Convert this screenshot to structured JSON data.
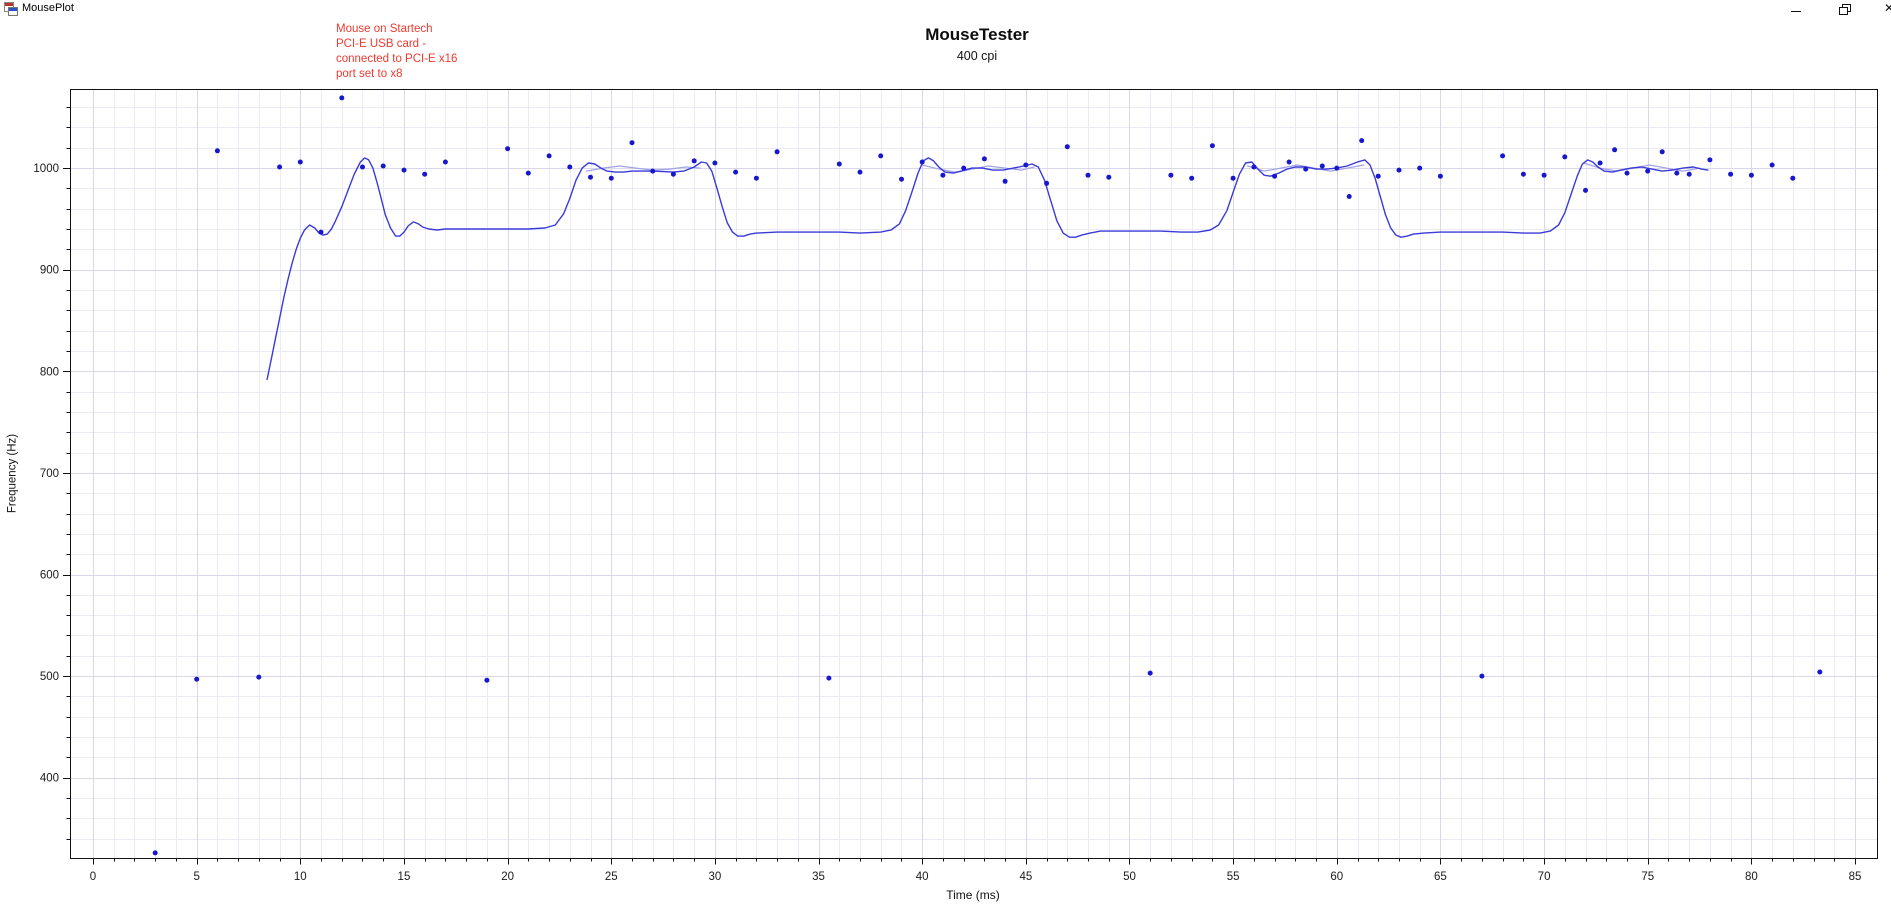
{
  "window": {
    "title": "MousePlot",
    "controls": {
      "minimize_label": "minimize",
      "maximize_label": "restore",
      "close_label": "close",
      "close_glyph": "✕"
    }
  },
  "chart": {
    "annotation": {
      "text": "Mouse on Startech\nPCI-E USB card -\nconnected to PCI-E x16\nport set to x8",
      "color": "#ee3a30"
    }
  },
  "chart_data": {
    "type": "scatter",
    "title": "MouseTester",
    "subtitle": "400 cpi",
    "xlabel": "Time (ms)",
    "ylabel": "Frequency (Hz)",
    "xlim": [
      -1.11,
      86.06
    ],
    "ylim": [
      321,
      1077.8
    ],
    "grid": true,
    "grid_minor_color": "#ebebf5",
    "grid_major_color": "#d8d8ea",
    "axis_color": "#111111",
    "tick_label_color": "#1a1a1a",
    "x_ticks": {
      "min": 0,
      "max": 85,
      "minor_step": 1,
      "major_step": 5
    },
    "y_ticks": {
      "min": 340,
      "max": 1060,
      "minor_step": 20,
      "major_step": 100,
      "label_min": 400
    },
    "series": [
      {
        "name": "secondary-fit",
        "type": "line",
        "color": "#a2a2ea",
        "width": 1.2,
        "segments": [
          [
            [
              23.8,
              997
            ],
            [
              24.6,
              1000
            ],
            [
              25.4,
              1002
            ],
            [
              26.2,
              1000
            ],
            [
              27,
              998
            ],
            [
              27.8,
              999
            ],
            [
              28.6,
              1001
            ],
            [
              29.3,
              1000
            ]
          ],
          [
            [
              40,
              1003
            ],
            [
              40.8,
              999
            ],
            [
              41.6,
              996
            ],
            [
              42.4,
              999
            ],
            [
              43.2,
              1002
            ],
            [
              44,
              1000
            ],
            [
              44.8,
              998
            ],
            [
              45.4,
              1001
            ]
          ],
          [
            [
              55.7,
              1002
            ],
            [
              56.5,
              997
            ],
            [
              57.3,
              1000
            ],
            [
              58.1,
              1003
            ],
            [
              58.9,
              1000
            ],
            [
              59.7,
              997
            ],
            [
              60.5,
              1000
            ],
            [
              61.3,
              1003
            ]
          ],
          [
            [
              71.9,
              1005
            ],
            [
              72.7,
              1000
            ],
            [
              73.5,
              997
            ],
            [
              74.3,
              1000
            ],
            [
              75.1,
              1003
            ],
            [
              75.9,
              1000
            ],
            [
              76.7,
              997
            ],
            [
              77.5,
              1000
            ]
          ]
        ]
      },
      {
        "name": "frequency-fit",
        "type": "line",
        "color": "#3a3ad9",
        "width": 1.4,
        "points": [
          [
            8.4,
            792
          ],
          [
            8.6,
            812
          ],
          [
            8.8,
            832
          ],
          [
            9.0,
            852
          ],
          [
            9.2,
            872
          ],
          [
            9.4,
            890
          ],
          [
            9.6,
            906
          ],
          [
            9.8,
            920
          ],
          [
            10.0,
            931
          ],
          [
            10.2,
            939
          ],
          [
            10.45,
            944
          ],
          [
            10.7,
            941
          ],
          [
            10.9,
            936
          ],
          [
            11.1,
            934
          ],
          [
            11.3,
            935
          ],
          [
            11.5,
            940
          ],
          [
            11.7,
            948
          ],
          [
            12.0,
            962
          ],
          [
            12.3,
            978
          ],
          [
            12.6,
            994
          ],
          [
            12.9,
            1006
          ],
          [
            13.1,
            1010
          ],
          [
            13.3,
            1008
          ],
          [
            13.5,
            1000
          ],
          [
            13.7,
            986
          ],
          [
            13.9,
            970
          ],
          [
            14.1,
            954
          ],
          [
            14.35,
            941
          ],
          [
            14.6,
            933
          ],
          [
            14.8,
            933
          ],
          [
            15.0,
            937
          ],
          [
            15.2,
            943
          ],
          [
            15.45,
            947
          ],
          [
            15.7,
            945
          ],
          [
            15.9,
            942
          ],
          [
            16.2,
            940
          ],
          [
            16.6,
            939
          ],
          [
            17.0,
            940
          ],
          [
            18.0,
            940
          ],
          [
            19.0,
            940
          ],
          [
            20.0,
            940
          ],
          [
            21.0,
            940
          ],
          [
            21.8,
            941
          ],
          [
            22.3,
            944
          ],
          [
            22.7,
            955
          ],
          [
            23.0,
            970
          ],
          [
            23.3,
            988
          ],
          [
            23.6,
            1000
          ],
          [
            23.9,
            1005
          ],
          [
            24.2,
            1004
          ],
          [
            24.5,
            1000
          ],
          [
            24.8,
            997
          ],
          [
            25.2,
            996
          ],
          [
            25.6,
            996
          ],
          [
            26.0,
            997
          ],
          [
            27.0,
            997
          ],
          [
            28.0,
            996
          ],
          [
            28.5,
            997
          ],
          [
            29.0,
            1001
          ],
          [
            29.35,
            1006
          ],
          [
            29.6,
            1005
          ],
          [
            29.85,
            997
          ],
          [
            30.1,
            980
          ],
          [
            30.35,
            962
          ],
          [
            30.6,
            946
          ],
          [
            30.85,
            937
          ],
          [
            31.1,
            933
          ],
          [
            31.4,
            933
          ],
          [
            31.7,
            935
          ],
          [
            32.0,
            936
          ],
          [
            33.0,
            937
          ],
          [
            34.0,
            937
          ],
          [
            35.0,
            937
          ],
          [
            36.0,
            937
          ],
          [
            37.0,
            936
          ],
          [
            38.0,
            937
          ],
          [
            38.5,
            939
          ],
          [
            38.9,
            945
          ],
          [
            39.2,
            958
          ],
          [
            39.5,
            976
          ],
          [
            39.8,
            995
          ],
          [
            40.05,
            1007
          ],
          [
            40.3,
            1010
          ],
          [
            40.55,
            1007
          ],
          [
            40.8,
            1001
          ],
          [
            41.1,
            996
          ],
          [
            41.5,
            995
          ],
          [
            41.9,
            997
          ],
          [
            42.4,
            1000
          ],
          [
            42.9,
            1000
          ],
          [
            43.4,
            998
          ],
          [
            43.9,
            998
          ],
          [
            44.4,
            1000
          ],
          [
            44.9,
            1002
          ],
          [
            45.3,
            1004
          ],
          [
            45.6,
            1001
          ],
          [
            45.9,
            988
          ],
          [
            46.2,
            968
          ],
          [
            46.5,
            948
          ],
          [
            46.8,
            936
          ],
          [
            47.1,
            932
          ],
          [
            47.4,
            932
          ],
          [
            47.7,
            934
          ],
          [
            48.1,
            936
          ],
          [
            48.6,
            938
          ],
          [
            49.5,
            938
          ],
          [
            50.5,
            938
          ],
          [
            51.5,
            938
          ],
          [
            52.5,
            937
          ],
          [
            53.3,
            937
          ],
          [
            53.9,
            939
          ],
          [
            54.3,
            944
          ],
          [
            54.7,
            958
          ],
          [
            55.0,
            976
          ],
          [
            55.3,
            994
          ],
          [
            55.6,
            1005
          ],
          [
            55.9,
            1006
          ],
          [
            56.2,
            999
          ],
          [
            56.5,
            993
          ],
          [
            56.8,
            992
          ],
          [
            57.2,
            995
          ],
          [
            57.6,
            999
          ],
          [
            58.0,
            1001
          ],
          [
            58.5,
            1001
          ],
          [
            59.0,
            999
          ],
          [
            59.5,
            999
          ],
          [
            60.0,
            1000
          ],
          [
            60.5,
            1002
          ],
          [
            61.0,
            1006
          ],
          [
            61.35,
            1008
          ],
          [
            61.6,
            1003
          ],
          [
            61.85,
            990
          ],
          [
            62.1,
            972
          ],
          [
            62.35,
            954
          ],
          [
            62.6,
            941
          ],
          [
            62.85,
            934
          ],
          [
            63.1,
            932
          ],
          [
            63.4,
            933
          ],
          [
            63.7,
            935
          ],
          [
            64.2,
            936
          ],
          [
            65.0,
            937
          ],
          [
            66.0,
            937
          ],
          [
            67.0,
            937
          ],
          [
            68.0,
            937
          ],
          [
            69.0,
            936
          ],
          [
            69.8,
            936
          ],
          [
            70.3,
            938
          ],
          [
            70.7,
            944
          ],
          [
            71.0,
            956
          ],
          [
            71.3,
            974
          ],
          [
            71.6,
            992
          ],
          [
            71.85,
            1004
          ],
          [
            72.1,
            1008
          ],
          [
            72.35,
            1006
          ],
          [
            72.6,
            1001
          ],
          [
            72.9,
            997
          ],
          [
            73.3,
            996
          ],
          [
            73.7,
            998
          ],
          [
            74.2,
            1000
          ],
          [
            74.7,
            1001
          ],
          [
            75.2,
            999
          ],
          [
            75.7,
            997
          ],
          [
            76.2,
            998
          ],
          [
            76.7,
            1000
          ],
          [
            77.2,
            1001
          ],
          [
            77.6,
            999
          ],
          [
            77.9,
            998
          ]
        ]
      },
      {
        "name": "reports",
        "type": "scatter",
        "color": "#1717cf",
        "radius": 2.5,
        "points": [
          [
            3,
            326
          ],
          [
            5,
            497
          ],
          [
            6,
            1017
          ],
          [
            8,
            499
          ],
          [
            9,
            1001
          ],
          [
            10,
            1006
          ],
          [
            11,
            937
          ],
          [
            12,
            1069
          ],
          [
            13,
            1001
          ],
          [
            14,
            1002
          ],
          [
            15,
            998
          ],
          [
            16,
            994
          ],
          [
            17,
            1006
          ],
          [
            19,
            496
          ],
          [
            20,
            1019
          ],
          [
            21,
            995
          ],
          [
            22,
            1012
          ],
          [
            23,
            1001
          ],
          [
            24,
            991
          ],
          [
            25,
            990
          ],
          [
            26,
            1025
          ],
          [
            27,
            997
          ],
          [
            28,
            994
          ],
          [
            29,
            1007
          ],
          [
            30,
            1005
          ],
          [
            31,
            996
          ],
          [
            32,
            990
          ],
          [
            33,
            1016
          ],
          [
            35.5,
            498
          ],
          [
            36,
            1004
          ],
          [
            37,
            996
          ],
          [
            38,
            1012
          ],
          [
            39,
            989
          ],
          [
            40,
            1006
          ],
          [
            41,
            993
          ],
          [
            42,
            1000
          ],
          [
            43,
            1009
          ],
          [
            44,
            987
          ],
          [
            45,
            1003
          ],
          [
            46,
            985
          ],
          [
            47,
            1021
          ],
          [
            48,
            993
          ],
          [
            49,
            991
          ],
          [
            51,
            503
          ],
          [
            52,
            993
          ],
          [
            53,
            990
          ],
          [
            54,
            1022
          ],
          [
            55,
            990
          ],
          [
            56,
            1001
          ],
          [
            57,
            992
          ],
          [
            57.7,
            1006
          ],
          [
            58.5,
            999
          ],
          [
            59.3,
            1002
          ],
          [
            60,
            1000
          ],
          [
            60.6,
            972
          ],
          [
            61.2,
            1027
          ],
          [
            62,
            992
          ],
          [
            63,
            998
          ],
          [
            64,
            1000
          ],
          [
            65,
            992
          ],
          [
            67,
            500
          ],
          [
            68,
            1012
          ],
          [
            69,
            994
          ],
          [
            70,
            993
          ],
          [
            71,
            1011
          ],
          [
            72,
            978
          ],
          [
            72.7,
            1005
          ],
          [
            73.4,
            1018
          ],
          [
            74,
            995
          ],
          [
            75,
            997
          ],
          [
            75.7,
            1016
          ],
          [
            76.4,
            995
          ],
          [
            77,
            994
          ],
          [
            78,
            1008
          ],
          [
            79,
            994
          ],
          [
            80,
            993
          ],
          [
            81,
            1003
          ],
          [
            82,
            990
          ],
          [
            83.3,
            504
          ]
        ]
      }
    ]
  }
}
